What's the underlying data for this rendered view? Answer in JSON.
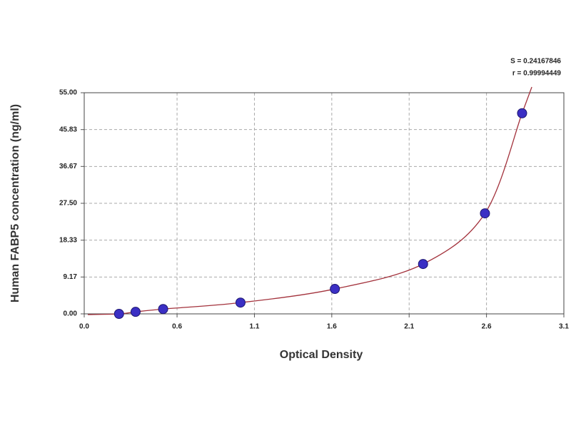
{
  "chart_data": {
    "type": "scatter",
    "annotations": [
      "S = 0.24167846",
      "r = 0.99994449"
    ],
    "xlabel": "Optical Density",
    "ylabel": "Human FABP5 concentration (ng/ml)",
    "series": [
      {
        "color": "#3b2fc4",
        "x": [
          0.225,
          0.332,
          0.51,
          1.01,
          1.62,
          2.19,
          2.59,
          2.83
        ],
        "values": [
          0,
          0.5,
          1.2,
          2.8,
          6.2,
          12.4,
          25.0,
          49.9
        ]
      }
    ],
    "curve_color": "#a3323c",
    "xlim": [
      0,
      3.1
    ],
    "xticks": [
      {
        "value": 0,
        "label": "0.0"
      },
      0.6,
      1.1,
      1.6,
      2.1,
      2.6,
      3.1
    ],
    "ylim": [
      0,
      55
    ],
    "yticks": [
      {
        "value": 0,
        "label": "0.00"
      },
      {
        "value": 9.17,
        "label": "9.17"
      },
      {
        "value": 18.33,
        "label": "18.33"
      },
      {
        "value": 27.5,
        "label": "27.50"
      },
      {
        "value": 36.67,
        "label": "36.67"
      },
      {
        "value": 45.83,
        "label": "45.83"
      },
      {
        "value": 55,
        "label": "55.00"
      }
    ],
    "grid": true
  }
}
